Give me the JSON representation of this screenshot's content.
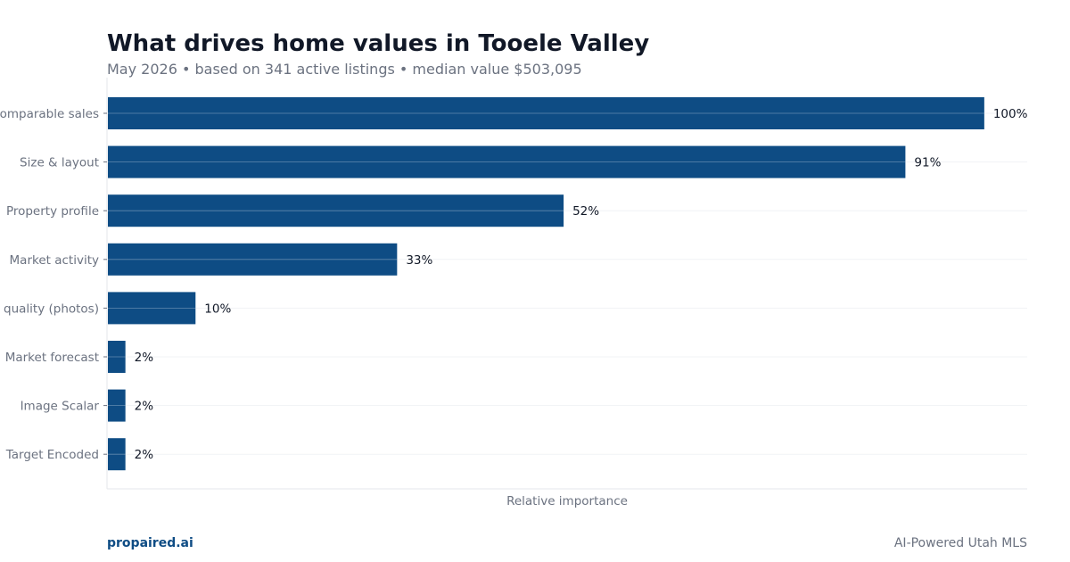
{
  "header": {
    "title": "What drives home values in Tooele Valley",
    "subtitle": "May 2026 • based on 341 active listings • median value $503,095"
  },
  "footer": {
    "brand": "propaired.ai",
    "tagline": "AI-Powered Utah MLS"
  },
  "chart_data": {
    "type": "bar",
    "orientation": "horizontal",
    "categories": [
      "Comparable sales",
      "Size & layout",
      "Property profile",
      "Market activity",
      "Image quality (photos)",
      "Market forecast",
      "Image Scalar",
      "Target Encoded"
    ],
    "values": [
      100,
      91,
      52,
      33,
      10,
      2,
      2,
      2
    ],
    "value_labels": [
      "100%",
      "91%",
      "52%",
      "33%",
      "10%",
      "2%",
      "2%",
      "2%"
    ],
    "title": "What drives home values in Tooele Valley",
    "xlabel": "Relative importance",
    "ylabel": "",
    "xlim": [
      0,
      105
    ],
    "grid": true,
    "bar_color": "#0e4c84",
    "label_color": "#6b7280"
  }
}
